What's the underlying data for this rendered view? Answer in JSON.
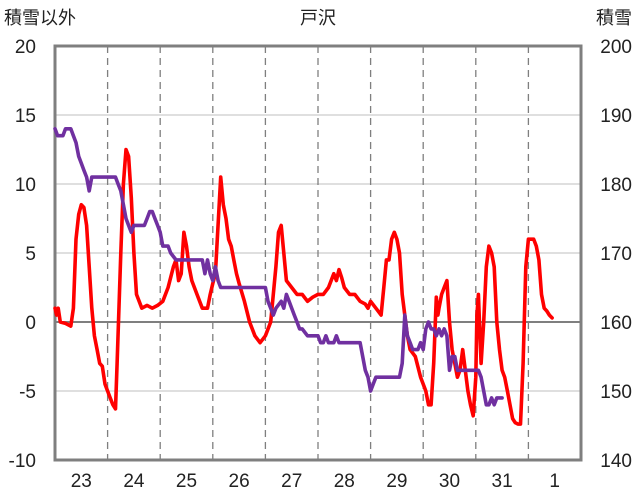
{
  "chart_data": {
    "type": "line",
    "title": "戸沢",
    "left_axis_label": "積雪以外",
    "right_axis_label": "積雪",
    "ylim_left": [
      -10,
      20
    ],
    "ylim_right": [
      140,
      200
    ],
    "y_ticks_left": [
      "20",
      "15",
      "10",
      "5",
      "0",
      "-5",
      "-10"
    ],
    "y_ticks_right": [
      "200",
      "190",
      "180",
      "170",
      "160",
      "150",
      "140"
    ],
    "x_ticks": [
      "23",
      "24",
      "25",
      "26",
      "27",
      "28",
      "29",
      "30",
      "31",
      "1"
    ],
    "x_tick_positions_days": [
      0.5,
      1.5,
      2.5,
      3.5,
      4.5,
      5.5,
      6.5,
      7.5,
      8.5,
      9.5
    ],
    "xlim_days": [
      0,
      10
    ],
    "grid": true,
    "series": [
      {
        "axis": "left",
        "color": "#ff0000",
        "points": [
          [
            0.0,
            1.0
          ],
          [
            0.03,
            0.5
          ],
          [
            0.06,
            1.0
          ],
          [
            0.1,
            0.0
          ],
          [
            0.2,
            -0.1
          ],
          [
            0.3,
            -0.3
          ],
          [
            0.35,
            1.0
          ],
          [
            0.4,
            6.0
          ],
          [
            0.45,
            7.8
          ],
          [
            0.5,
            8.5
          ],
          [
            0.55,
            8.3
          ],
          [
            0.6,
            7.0
          ],
          [
            0.65,
            4.0
          ],
          [
            0.7,
            1.0
          ],
          [
            0.75,
            -1.0
          ],
          [
            0.8,
            -2.0
          ],
          [
            0.85,
            -3.0
          ],
          [
            0.9,
            -3.2
          ],
          [
            0.95,
            -4.5
          ],
          [
            1.0,
            -5.0
          ],
          [
            1.05,
            -5.5
          ],
          [
            1.1,
            -6.0
          ],
          [
            1.15,
            -6.3
          ],
          [
            1.18,
            -3.0
          ],
          [
            1.25,
            5.0
          ],
          [
            1.3,
            10.0
          ],
          [
            1.35,
            12.5
          ],
          [
            1.4,
            12.0
          ],
          [
            1.45,
            9.0
          ],
          [
            1.5,
            5.0
          ],
          [
            1.55,
            2.0
          ],
          [
            1.65,
            1.0
          ],
          [
            1.75,
            1.2
          ],
          [
            1.85,
            1.0
          ],
          [
            1.95,
            1.2
          ],
          [
            2.05,
            1.5
          ],
          [
            2.15,
            2.5
          ],
          [
            2.25,
            4.0
          ],
          [
            2.3,
            4.5
          ],
          [
            2.35,
            3.0
          ],
          [
            2.4,
            3.5
          ],
          [
            2.45,
            6.5
          ],
          [
            2.5,
            5.5
          ],
          [
            2.55,
            4.0
          ],
          [
            2.6,
            3.0
          ],
          [
            2.7,
            2.0
          ],
          [
            2.8,
            1.0
          ],
          [
            2.9,
            1.0
          ],
          [
            2.95,
            2.0
          ],
          [
            3.0,
            2.8
          ],
          [
            3.05,
            3.5
          ],
          [
            3.15,
            10.5
          ],
          [
            3.2,
            8.5
          ],
          [
            3.25,
            7.5
          ],
          [
            3.3,
            6.0
          ],
          [
            3.35,
            5.5
          ],
          [
            3.4,
            4.5
          ],
          [
            3.45,
            3.5
          ],
          [
            3.5,
            2.8
          ],
          [
            3.6,
            1.5
          ],
          [
            3.7,
            0.0
          ],
          [
            3.8,
            -1.0
          ],
          [
            3.9,
            -1.5
          ],
          [
            4.0,
            -1.0
          ],
          [
            4.1,
            0.0
          ],
          [
            4.2,
            4.0
          ],
          [
            4.25,
            6.5
          ],
          [
            4.3,
            7.0
          ],
          [
            4.35,
            5.0
          ],
          [
            4.4,
            3.0
          ],
          [
            4.5,
            2.5
          ],
          [
            4.6,
            2.0
          ],
          [
            4.7,
            2.0
          ],
          [
            4.8,
            1.5
          ],
          [
            4.9,
            1.8
          ],
          [
            5.0,
            2.0
          ],
          [
            5.1,
            2.0
          ],
          [
            5.2,
            2.5
          ],
          [
            5.3,
            3.5
          ],
          [
            5.35,
            3.0
          ],
          [
            5.4,
            3.8
          ],
          [
            5.45,
            3.2
          ],
          [
            5.5,
            2.5
          ],
          [
            5.6,
            2.0
          ],
          [
            5.7,
            2.0
          ],
          [
            5.8,
            1.5
          ],
          [
            5.9,
            1.3
          ],
          [
            5.95,
            1.0
          ],
          [
            6.0,
            1.5
          ],
          [
            6.1,
            1.0
          ],
          [
            6.2,
            0.5
          ],
          [
            6.25,
            2.5
          ],
          [
            6.3,
            4.5
          ],
          [
            6.35,
            4.5
          ],
          [
            6.4,
            6.0
          ],
          [
            6.45,
            6.5
          ],
          [
            6.5,
            6.0
          ],
          [
            6.55,
            5.0
          ],
          [
            6.6,
            2.0
          ],
          [
            6.65,
            0.5
          ],
          [
            6.7,
            -1.0
          ],
          [
            6.75,
            -2.0
          ],
          [
            6.85,
            -2.5
          ],
          [
            6.95,
            -4.0
          ],
          [
            7.05,
            -5.0
          ],
          [
            7.1,
            -6.0
          ],
          [
            7.15,
            -6.0
          ],
          [
            7.2,
            -3.0
          ],
          [
            7.25,
            1.8
          ],
          [
            7.28,
            0.5
          ],
          [
            7.3,
            1.0
          ],
          [
            7.35,
            2.0
          ],
          [
            7.4,
            2.5
          ],
          [
            7.45,
            3.0
          ],
          [
            7.5,
            0.0
          ],
          [
            7.55,
            -2.0
          ],
          [
            7.6,
            -3.0
          ],
          [
            7.65,
            -4.0
          ],
          [
            7.7,
            -3.5
          ],
          [
            7.75,
            -2.0
          ],
          [
            7.8,
            -3.5
          ],
          [
            7.85,
            -5.0
          ],
          [
            7.9,
            -6.0
          ],
          [
            7.95,
            -6.8
          ],
          [
            8.0,
            -4.0
          ],
          [
            8.02,
            0.5
          ],
          [
            8.05,
            2.0
          ],
          [
            8.08,
            -1.0
          ],
          [
            8.1,
            -3.0
          ],
          [
            8.15,
            0.0
          ],
          [
            8.2,
            4.0
          ],
          [
            8.25,
            5.5
          ],
          [
            8.3,
            5.0
          ],
          [
            8.35,
            4.0
          ],
          [
            8.4,
            0.0
          ],
          [
            8.45,
            -2.0
          ],
          [
            8.5,
            -3.5
          ],
          [
            8.55,
            -4.0
          ],
          [
            8.6,
            -5.0
          ],
          [
            8.65,
            -6.0
          ],
          [
            8.7,
            -7.0
          ],
          [
            8.75,
            -7.3
          ],
          [
            8.8,
            -7.4
          ],
          [
            8.85,
            -7.4
          ],
          [
            8.9,
            -3.0
          ],
          [
            8.95,
            4.0
          ],
          [
            9.0,
            6.0
          ],
          [
            9.1,
            6.0
          ],
          [
            9.15,
            5.5
          ],
          [
            9.2,
            4.5
          ],
          [
            9.25,
            2.0
          ],
          [
            9.3,
            1.0
          ],
          [
            9.35,
            0.8
          ],
          [
            9.4,
            0.5
          ],
          [
            9.45,
            0.3
          ]
        ]
      },
      {
        "axis": "right",
        "color": "#7030a0",
        "points": [
          [
            0.0,
            188
          ],
          [
            0.05,
            187
          ],
          [
            0.15,
            187
          ],
          [
            0.2,
            188
          ],
          [
            0.3,
            188
          ],
          [
            0.35,
            187
          ],
          [
            0.4,
            186
          ],
          [
            0.45,
            184
          ],
          [
            0.5,
            183
          ],
          [
            0.55,
            182
          ],
          [
            0.6,
            181
          ],
          [
            0.65,
            179
          ],
          [
            0.7,
            181
          ],
          [
            0.75,
            181
          ],
          [
            1.0,
            181
          ],
          [
            1.1,
            181
          ],
          [
            1.15,
            181
          ],
          [
            1.2,
            180
          ],
          [
            1.25,
            179
          ],
          [
            1.3,
            177
          ],
          [
            1.35,
            175
          ],
          [
            1.4,
            174
          ],
          [
            1.45,
            173
          ],
          [
            1.5,
            174
          ],
          [
            1.6,
            174
          ],
          [
            1.7,
            174
          ],
          [
            1.75,
            175
          ],
          [
            1.8,
            176
          ],
          [
            1.85,
            176
          ],
          [
            1.9,
            175
          ],
          [
            1.95,
            174
          ],
          [
            2.0,
            173
          ],
          [
            2.05,
            171
          ],
          [
            2.1,
            171
          ],
          [
            2.15,
            171
          ],
          [
            2.2,
            170
          ],
          [
            2.3,
            169
          ],
          [
            2.4,
            169
          ],
          [
            2.5,
            169
          ],
          [
            2.6,
            169
          ],
          [
            2.7,
            169
          ],
          [
            2.8,
            169
          ],
          [
            2.85,
            167
          ],
          [
            2.9,
            169
          ],
          [
            2.95,
            167
          ],
          [
            3.0,
            166
          ],
          [
            3.05,
            168
          ],
          [
            3.1,
            166
          ],
          [
            3.15,
            165
          ],
          [
            3.2,
            165
          ],
          [
            3.3,
            165
          ],
          [
            3.4,
            165
          ],
          [
            3.5,
            165
          ],
          [
            3.6,
            165
          ],
          [
            3.7,
            165
          ],
          [
            3.8,
            165
          ],
          [
            3.9,
            165
          ],
          [
            4.0,
            165
          ],
          [
            4.05,
            163
          ],
          [
            4.1,
            162
          ],
          [
            4.15,
            161
          ],
          [
            4.2,
            162
          ],
          [
            4.3,
            163
          ],
          [
            4.35,
            162
          ],
          [
            4.4,
            164
          ],
          [
            4.45,
            163
          ],
          [
            4.5,
            162
          ],
          [
            4.55,
            161
          ],
          [
            4.6,
            160
          ],
          [
            4.65,
            159
          ],
          [
            4.7,
            159
          ],
          [
            4.8,
            158
          ],
          [
            4.9,
            158
          ],
          [
            5.0,
            158
          ],
          [
            5.05,
            157
          ],
          [
            5.1,
            157
          ],
          [
            5.15,
            158
          ],
          [
            5.2,
            157
          ],
          [
            5.3,
            157
          ],
          [
            5.35,
            158
          ],
          [
            5.4,
            157
          ],
          [
            5.5,
            157
          ],
          [
            5.6,
            157
          ],
          [
            5.7,
            157
          ],
          [
            5.8,
            157
          ],
          [
            5.85,
            155
          ],
          [
            5.9,
            153
          ],
          [
            5.95,
            152
          ],
          [
            6.0,
            150
          ],
          [
            6.05,
            151
          ],
          [
            6.1,
            152
          ],
          [
            6.2,
            152
          ],
          [
            6.3,
            152
          ],
          [
            6.4,
            152
          ],
          [
            6.5,
            152
          ],
          [
            6.55,
            152
          ],
          [
            6.6,
            154
          ],
          [
            6.65,
            161
          ],
          [
            6.7,
            158
          ],
          [
            6.75,
            157
          ],
          [
            6.8,
            156
          ],
          [
            6.9,
            156
          ],
          [
            6.95,
            157
          ],
          [
            7.0,
            156
          ],
          [
            7.05,
            159
          ],
          [
            7.1,
            160
          ],
          [
            7.15,
            159
          ],
          [
            7.2,
            159
          ],
          [
            7.25,
            158
          ],
          [
            7.3,
            159
          ],
          [
            7.35,
            158
          ],
          [
            7.4,
            159
          ],
          [
            7.45,
            158
          ],
          [
            7.5,
            153
          ],
          [
            7.55,
            155
          ],
          [
            7.6,
            155
          ],
          [
            7.65,
            153
          ],
          [
            7.7,
            153
          ],
          [
            7.8,
            153
          ],
          [
            7.9,
            153
          ],
          [
            8.0,
            153
          ],
          [
            8.05,
            153
          ],
          [
            8.1,
            152
          ],
          [
            8.15,
            150
          ],
          [
            8.2,
            148
          ],
          [
            8.25,
            148
          ],
          [
            8.3,
            149
          ],
          [
            8.35,
            148
          ],
          [
            8.4,
            149
          ],
          [
            8.45,
            149
          ],
          [
            8.5,
            149
          ]
        ]
      }
    ]
  }
}
